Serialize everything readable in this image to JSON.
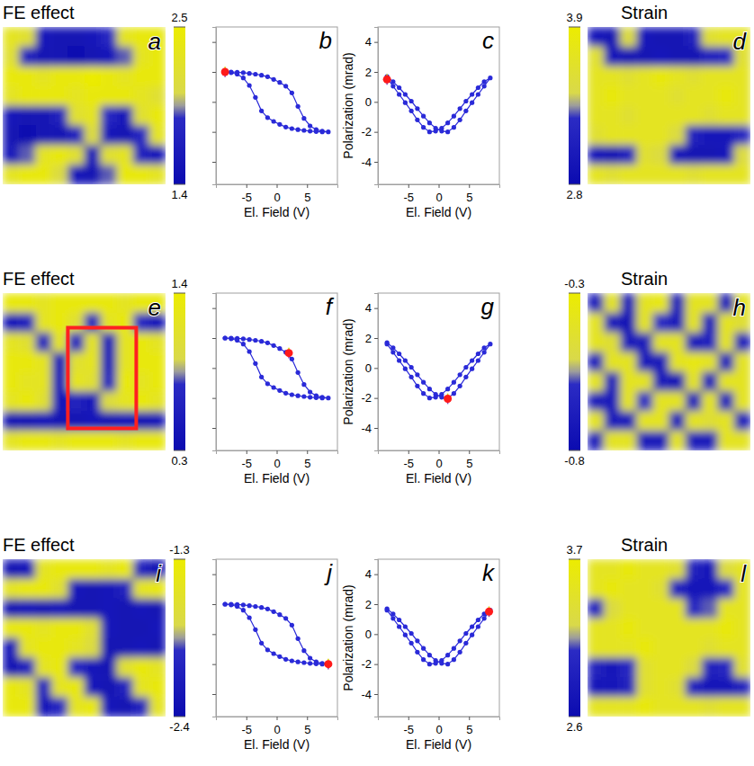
{
  "chart_data": [
    {
      "type": "heatmap",
      "title": "FE effect",
      "panel": "a",
      "cells": [
        [
          2.3,
          2.2,
          1.6,
          1.5,
          1.5,
          1.6,
          1.8,
          2.3,
          2.4,
          2.4
        ],
        [
          2.2,
          1.7,
          1.5,
          1.5,
          1.4,
          1.5,
          1.6,
          1.9,
          2.3,
          2.4
        ],
        [
          2.4,
          2.4,
          2.3,
          2.4,
          2.4,
          2.5,
          2.4,
          2.3,
          2.4,
          2.4
        ],
        [
          2.3,
          2.4,
          2.4,
          2.4,
          2.3,
          2.4,
          2.4,
          2.4,
          2.3,
          2.2
        ],
        [
          1.6,
          1.5,
          1.5,
          1.7,
          2.2,
          2.3,
          1.8,
          1.6,
          2.2,
          2.4
        ],
        [
          1.5,
          1.4,
          1.5,
          1.5,
          1.7,
          2.1,
          1.6,
          1.5,
          1.8,
          2.3
        ],
        [
          1.6,
          1.9,
          2.3,
          2.4,
          2.2,
          1.6,
          2.2,
          2.3,
          1.7,
          1.6
        ],
        [
          2.3,
          2.4,
          2.4,
          2.1,
          1.6,
          1.5,
          1.9,
          2.4,
          2.4,
          2.3
        ]
      ],
      "colorbar_range": [
        1.4,
        2.5
      ],
      "colorbar_ticks": [
        1.4,
        2.5
      ]
    },
    {
      "type": "line",
      "panel": "b",
      "color": "#2a2ad8",
      "marker": "circle",
      "tick_labels": "x",
      "x": [
        -8.5,
        -7.5,
        -6.5,
        -5.5,
        -4.5,
        -3.5,
        -2.5,
        -1.5,
        -0.5,
        0.5,
        1.5,
        2.5,
        3.5,
        4.5,
        5.5,
        6.5,
        7.5,
        8.5,
        7.5,
        6.5,
        5.5,
        4.5,
        3.5,
        2.5,
        1.5,
        0.5,
        -0.5,
        -1.5,
        -2.5,
        -3.5,
        -4.5,
        -5.5,
        -6.5,
        -7.5,
        -8.5
      ],
      "values": [
        2.0,
        2.0,
        1.98,
        1.95,
        1.9,
        1.85,
        1.78,
        1.68,
        1.5,
        1.3,
        1.05,
        0.6,
        -0.3,
        -1.1,
        -1.6,
        -1.85,
        -1.95,
        -2.0,
        -2.0,
        -1.98,
        -1.95,
        -1.9,
        -1.85,
        -1.78,
        -1.68,
        -1.5,
        -1.3,
        -1.05,
        -0.6,
        0.3,
        1.1,
        1.6,
        1.85,
        1.95,
        2.0
      ],
      "highlight": {
        "x": -8.5,
        "y": 2.0,
        "error": 0.35
      },
      "xlim": [
        -10,
        10
      ],
      "ylim": [
        -5.5,
        5
      ],
      "xticks": [
        -5,
        0,
        5
      ],
      "yticks": [
        -4,
        -2,
        0,
        2,
        4
      ],
      "xlabel": "El. Field (V)"
    },
    {
      "type": "line",
      "panel": "c",
      "color": "#2a2ad8",
      "marker": "circle",
      "x": [
        -8.5,
        -7.5,
        -6.5,
        -5.5,
        -4.5,
        -3.5,
        -2.5,
        -1.5,
        -0.5,
        0.5,
        1.5,
        2.5,
        3.5,
        4.5,
        5.5,
        6.5,
        7.5,
        8.5,
        7.5,
        6.5,
        5.5,
        4.5,
        3.5,
        2.5,
        1.5,
        0.5,
        -0.5,
        -1.5,
        -2.5,
        -3.5,
        -4.5,
        -5.5,
        -6.5,
        -7.5,
        -8.5
      ],
      "values": [
        1.7,
        1.35,
        0.95,
        0.5,
        0.05,
        -0.45,
        -0.95,
        -1.4,
        -1.75,
        -1.95,
        -2.0,
        -1.7,
        -1.2,
        -0.6,
        -0.05,
        0.5,
        1.05,
        1.6,
        1.35,
        0.95,
        0.5,
        0.05,
        -0.45,
        -0.95,
        -1.4,
        -1.75,
        -1.95,
        -2.0,
        -1.7,
        -1.2,
        -0.6,
        -0.05,
        0.5,
        1.05,
        1.6
      ],
      "highlight": {
        "x": -8.5,
        "y": 1.5,
        "error": 0.35
      },
      "xlim": [
        -10,
        10
      ],
      "ylim": [
        -5.5,
        5
      ],
      "xticks": [
        -5,
        0,
        5
      ],
      "yticks": [
        -4,
        -2,
        0,
        2,
        4
      ],
      "xlabel": "El. Field (V)",
      "ylabel": "Polarization (mrad)"
    },
    {
      "type": "heatmap",
      "title": "Strain",
      "panel": "d",
      "cells": [
        [
          3.0,
          2.9,
          3.5,
          3.0,
          2.9,
          2.9,
          3.1,
          3.6,
          3.7,
          3.7
        ],
        [
          3.6,
          3.0,
          2.9,
          2.9,
          3.0,
          2.9,
          2.9,
          3.1,
          3.2,
          3.6
        ],
        [
          3.7,
          3.7,
          3.6,
          3.7,
          3.8,
          3.7,
          3.6,
          3.7,
          3.7,
          3.7
        ],
        [
          3.7,
          3.8,
          3.7,
          3.7,
          3.7,
          3.6,
          3.7,
          3.7,
          3.8,
          3.7
        ],
        [
          3.7,
          3.7,
          3.6,
          3.7,
          3.7,
          3.7,
          3.7,
          3.6,
          3.7,
          3.7
        ],
        [
          3.6,
          3.7,
          3.7,
          3.7,
          3.7,
          3.5,
          3.1,
          3.0,
          3.0,
          3.2
        ],
        [
          3.0,
          2.9,
          3.1,
          3.6,
          3.5,
          3.0,
          2.9,
          2.9,
          3.0,
          3.5
        ],
        [
          3.7,
          3.6,
          3.7,
          3.7,
          3.7,
          3.7,
          3.6,
          3.7,
          3.7,
          3.7
        ]
      ],
      "colorbar_range": [
        2.8,
        3.9
      ],
      "colorbar_ticks": [
        2.8,
        3.9
      ]
    },
    {
      "type": "heatmap",
      "title": "FE effect",
      "panel": "e",
      "cells": [
        [
          1.3,
          1.3,
          1.2,
          1.3,
          1.3,
          1.3,
          1.3,
          1.2,
          1.3,
          1.3
        ],
        [
          0.5,
          0.6,
          1.2,
          1.3,
          1.1,
          0.6,
          1.2,
          1.3,
          0.7,
          0.5
        ],
        [
          1.2,
          1.1,
          0.6,
          1.2,
          0.6,
          1.2,
          0.5,
          1.2,
          1.3,
          1.2
        ],
        [
          1.3,
          1.3,
          1.2,
          0.5,
          1.1,
          1.2,
          0.5,
          1.2,
          1.3,
          1.3
        ],
        [
          1.3,
          1.2,
          1.2,
          0.5,
          1.2,
          1.1,
          0.6,
          1.3,
          1.2,
          1.3
        ],
        [
          1.2,
          1.3,
          1.1,
          0.5,
          0.6,
          0.5,
          1.0,
          1.2,
          1.3,
          1.2
        ],
        [
          0.4,
          0.4,
          0.5,
          0.4,
          0.4,
          0.5,
          0.4,
          0.5,
          0.4,
          0.5
        ],
        [
          1.2,
          1.3,
          1.3,
          1.2,
          1.3,
          1.3,
          1.3,
          1.2,
          1.3,
          1.3
        ]
      ],
      "colorbar_range": [
        0.3,
        1.4
      ],
      "colorbar_ticks": [
        0.3,
        1.4
      ]
    },
    {
      "type": "line",
      "panel": "f",
      "color": "#2a2ad8",
      "marker": "circle",
      "tick_labels": "x",
      "x": [
        -8.5,
        -7.5,
        -6.5,
        -5.5,
        -4.5,
        -3.5,
        -2.5,
        -1.5,
        -0.5,
        0.5,
        1.5,
        2.5,
        3.5,
        4.5,
        5.5,
        6.5,
        7.5,
        8.5,
        7.5,
        6.5,
        5.5,
        4.5,
        3.5,
        2.5,
        1.5,
        0.5,
        -0.5,
        -1.5,
        -2.5,
        -3.5,
        -4.5,
        -5.5,
        -6.5,
        -7.5,
        -8.5
      ],
      "values": [
        2.0,
        2.0,
        1.98,
        1.95,
        1.9,
        1.85,
        1.78,
        1.68,
        1.5,
        1.3,
        1.05,
        0.6,
        -0.3,
        -1.1,
        -1.6,
        -1.85,
        -1.95,
        -2.0,
        -2.0,
        -1.98,
        -1.95,
        -1.9,
        -1.85,
        -1.78,
        -1.68,
        -1.5,
        -1.3,
        -1.05,
        -0.6,
        0.3,
        1.1,
        1.6,
        1.85,
        1.95,
        2.0
      ],
      "highlight": {
        "x": 2.0,
        "y": 1.0,
        "error": 0.35
      },
      "xlim": [
        -10,
        10
      ],
      "ylim": [
        -5.5,
        5
      ],
      "xticks": [
        -5,
        0,
        5
      ],
      "yticks": [
        -4,
        -2,
        0,
        2,
        4
      ],
      "xlabel": "El. Field (V)"
    },
    {
      "type": "line",
      "panel": "g",
      "color": "#2a2ad8",
      "marker": "circle",
      "x": [
        -8.5,
        -7.5,
        -6.5,
        -5.5,
        -4.5,
        -3.5,
        -2.5,
        -1.5,
        -0.5,
        0.5,
        1.5,
        2.5,
        3.5,
        4.5,
        5.5,
        6.5,
        7.5,
        8.5,
        7.5,
        6.5,
        5.5,
        4.5,
        3.5,
        2.5,
        1.5,
        0.5,
        -0.5,
        -1.5,
        -2.5,
        -3.5,
        -4.5,
        -5.5,
        -6.5,
        -7.5,
        -8.5
      ],
      "values": [
        1.7,
        1.35,
        0.95,
        0.5,
        0.05,
        -0.45,
        -0.95,
        -1.4,
        -1.75,
        -1.95,
        -2.0,
        -1.7,
        -1.2,
        -0.6,
        -0.05,
        0.5,
        1.05,
        1.6,
        1.35,
        0.95,
        0.5,
        0.05,
        -0.45,
        -0.95,
        -1.4,
        -1.75,
        -1.95,
        -2.0,
        -1.7,
        -1.2,
        -0.6,
        -0.05,
        0.5,
        1.05,
        1.6
      ],
      "highlight": {
        "x": 1.5,
        "y": -2.05,
        "error": 0.35
      },
      "xlim": [
        -10,
        10
      ],
      "ylim": [
        -5.5,
        5
      ],
      "xticks": [
        -5,
        0,
        5
      ],
      "yticks": [
        -4,
        -2,
        0,
        2,
        4
      ],
      "xlabel": "El. Field (V)",
      "ylabel": "Polarization (mrad)"
    },
    {
      "type": "heatmap",
      "title": "Strain",
      "panel": "h",
      "cells": [
        [
          -0.7,
          -0.4,
          -0.7,
          -0.4,
          -0.35,
          -0.7,
          -0.4,
          -0.4,
          -0.7,
          -0.4
        ],
        [
          -0.4,
          -0.7,
          -0.75,
          -0.4,
          -0.6,
          -0.7,
          -0.4,
          -0.7,
          -0.4,
          -0.45
        ],
        [
          -0.4,
          -0.45,
          -0.7,
          -0.7,
          -0.4,
          -0.4,
          -0.7,
          -0.65,
          -0.4,
          -0.7
        ],
        [
          -0.7,
          -0.4,
          -0.4,
          -0.7,
          -0.7,
          -0.4,
          -0.35,
          -0.4,
          -0.7,
          -0.4
        ],
        [
          -0.4,
          -0.7,
          -0.4,
          -0.4,
          -0.7,
          -0.75,
          -0.4,
          -0.7,
          -0.4,
          -0.4
        ],
        [
          -0.7,
          -0.7,
          -0.4,
          -0.6,
          -0.4,
          -0.4,
          -0.7,
          -0.4,
          -0.7,
          -0.4
        ],
        [
          -0.4,
          -0.7,
          -0.7,
          -0.4,
          -0.4,
          -0.7,
          -0.4,
          -0.45,
          -0.4,
          -0.7
        ],
        [
          -0.7,
          -0.4,
          -0.4,
          -0.7,
          -0.7,
          -0.4,
          -0.7,
          -0.7,
          -0.4,
          -0.4
        ]
      ],
      "colorbar_range": [
        -0.8,
        -0.3
      ],
      "colorbar_ticks": [
        -0.8,
        -0.3
      ]
    },
    {
      "type": "heatmap",
      "title": "FE effect",
      "panel": "i",
      "cells": [
        [
          -2.3,
          -2.2,
          -1.5,
          -1.4,
          -1.4,
          -1.4,
          -1.5,
          -1.4,
          -2.1,
          -2.3
        ],
        [
          -1.5,
          -1.4,
          -1.4,
          -1.6,
          -2.2,
          -2.3,
          -2.2,
          -2.1,
          -1.5,
          -1.4
        ],
        [
          -2.3,
          -2.2,
          -2.3,
          -2.2,
          -2.3,
          -2.3,
          -2.2,
          -2.3,
          -2.2,
          -2.3
        ],
        [
          -1.4,
          -1.4,
          -1.5,
          -1.4,
          -1.4,
          -1.6,
          -2.2,
          -2.3,
          -2.3,
          -2.2
        ],
        [
          -2.2,
          -1.5,
          -1.4,
          -1.4,
          -1.5,
          -1.7,
          -2.3,
          -2.3,
          -2.2,
          -2.3
        ],
        [
          -2.3,
          -2.1,
          -1.5,
          -1.4,
          -2.0,
          -2.2,
          -2.3,
          -1.6,
          -1.4,
          -1.5
        ],
        [
          -1.4,
          -1.5,
          -2.1,
          -1.5,
          -1.4,
          -2.2,
          -2.3,
          -2.1,
          -1.5,
          -1.4
        ],
        [
          -1.4,
          -1.4,
          -2.2,
          -2.0,
          -1.5,
          -1.4,
          -2.2,
          -2.3,
          -2.1,
          -1.5
        ]
      ],
      "colorbar_range": [
        -2.4,
        -1.3
      ],
      "colorbar_ticks": [
        -2.4,
        -1.3
      ]
    },
    {
      "type": "line",
      "panel": "j",
      "color": "#2a2ad8",
      "marker": "circle",
      "tick_labels": "x",
      "x": [
        -8.5,
        -7.5,
        -6.5,
        -5.5,
        -4.5,
        -3.5,
        -2.5,
        -1.5,
        -0.5,
        0.5,
        1.5,
        2.5,
        3.5,
        4.5,
        5.5,
        6.5,
        7.5,
        8.5,
        7.5,
        6.5,
        5.5,
        4.5,
        3.5,
        2.5,
        1.5,
        0.5,
        -0.5,
        -1.5,
        -2.5,
        -3.5,
        -4.5,
        -5.5,
        -6.5,
        -7.5,
        -8.5
      ],
      "values": [
        2.0,
        2.0,
        1.98,
        1.95,
        1.9,
        1.85,
        1.78,
        1.68,
        1.5,
        1.3,
        1.05,
        0.6,
        -0.3,
        -1.1,
        -1.6,
        -1.85,
        -1.95,
        -2.0,
        -2.0,
        -1.98,
        -1.95,
        -1.9,
        -1.85,
        -1.78,
        -1.68,
        -1.5,
        -1.3,
        -1.05,
        -0.6,
        0.3,
        1.1,
        1.6,
        1.85,
        1.95,
        2.0
      ],
      "highlight": {
        "x": 8.5,
        "y": -2.0,
        "error": 0.35
      },
      "xlim": [
        -10,
        10
      ],
      "ylim": [
        -5.5,
        5
      ],
      "xticks": [
        -5,
        0,
        5
      ],
      "yticks": [
        -4,
        -2,
        0,
        2,
        4
      ],
      "xlabel": "El. Field (V)"
    },
    {
      "type": "line",
      "panel": "k",
      "color": "#2a2ad8",
      "marker": "circle",
      "x": [
        -8.5,
        -7.5,
        -6.5,
        -5.5,
        -4.5,
        -3.5,
        -2.5,
        -1.5,
        -0.5,
        0.5,
        1.5,
        2.5,
        3.5,
        4.5,
        5.5,
        6.5,
        7.5,
        8.5,
        7.5,
        6.5,
        5.5,
        4.5,
        3.5,
        2.5,
        1.5,
        0.5,
        -0.5,
        -1.5,
        -2.5,
        -3.5,
        -4.5,
        -5.5,
        -6.5,
        -7.5,
        -8.5
      ],
      "values": [
        1.7,
        1.35,
        0.95,
        0.5,
        0.05,
        -0.45,
        -0.95,
        -1.4,
        -1.75,
        -1.95,
        -2.0,
        -1.7,
        -1.2,
        -0.6,
        -0.05,
        0.5,
        1.05,
        1.6,
        1.35,
        0.95,
        0.5,
        0.05,
        -0.45,
        -0.95,
        -1.4,
        -1.75,
        -1.95,
        -2.0,
        -1.7,
        -1.2,
        -0.6,
        -0.05,
        0.5,
        1.05,
        1.6
      ],
      "highlight": {
        "x": 8.3,
        "y": 1.5,
        "error": 0.35
      },
      "xlim": [
        -10,
        10
      ],
      "ylim": [
        -5.5,
        5
      ],
      "xticks": [
        -5,
        0,
        5
      ],
      "yticks": [
        -4,
        -2,
        0,
        2,
        4
      ],
      "xlabel": "El. Field (V)",
      "ylabel": "Polarization (mrad)"
    },
    {
      "type": "heatmap",
      "title": "Strain",
      "panel": "l",
      "cells": [
        [
          3.5,
          3.5,
          3.6,
          3.5,
          3.5,
          3.4,
          2.9,
          2.8,
          3.3,
          3.5
        ],
        [
          3.5,
          3.6,
          3.5,
          3.5,
          3.4,
          2.9,
          2.8,
          2.8,
          3.0,
          3.5
        ],
        [
          2.9,
          3.3,
          3.5,
          3.5,
          3.5,
          3.5,
          3.0,
          3.1,
          3.5,
          3.5
        ],
        [
          3.5,
          3.5,
          3.6,
          3.5,
          3.5,
          3.5,
          3.5,
          3.5,
          3.6,
          3.5
        ],
        [
          3.5,
          3.5,
          3.5,
          3.6,
          3.5,
          3.5,
          3.5,
          3.4,
          3.5,
          3.5
        ],
        [
          2.9,
          2.8,
          3.0,
          3.4,
          3.5,
          3.5,
          3.3,
          2.9,
          3.0,
          3.4
        ],
        [
          2.8,
          2.8,
          2.9,
          3.4,
          3.5,
          3.4,
          2.9,
          2.8,
          2.8,
          2.9
        ],
        [
          3.5,
          3.5,
          3.5,
          3.6,
          3.5,
          3.5,
          3.5,
          3.4,
          3.5,
          3.5
        ]
      ],
      "colorbar_range": [
        2.6,
        3.7
      ],
      "colorbar_ticks": [
        2.6,
        3.7
      ]
    }
  ]
}
